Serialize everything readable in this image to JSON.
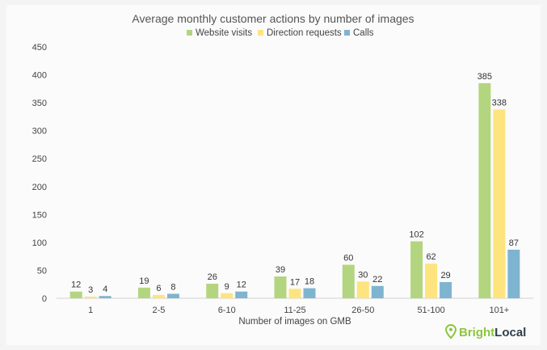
{
  "chart_data": {
    "type": "bar",
    "title": "Average monthly customer actions by number of images",
    "xlabel": "Number of images on GMB",
    "ylabel": "",
    "ylim": [
      0,
      450
    ],
    "yticks": [
      0,
      50,
      100,
      150,
      200,
      250,
      300,
      350,
      400,
      450
    ],
    "grid": false,
    "legend_position": "top-center",
    "categories": [
      "1",
      "2-5",
      "6-10",
      "11-25",
      "26-50",
      "51-100",
      "101+"
    ],
    "series": [
      {
        "name": "Website visits",
        "color": "#b3d57f",
        "values": [
          12,
          19,
          26,
          39,
          60,
          102,
          385
        ]
      },
      {
        "name": "Direction requests",
        "color": "#fde47f",
        "values": [
          3,
          6,
          9,
          17,
          30,
          62,
          338
        ]
      },
      {
        "name": "Calls",
        "color": "#7fb4d0",
        "values": [
          4,
          8,
          12,
          18,
          22,
          29,
          87
        ]
      }
    ]
  },
  "brand": {
    "name_part1": "Bright",
    "name_part2": "Local",
    "color_part1": "#8cc63f",
    "color_part2": "#2f3e4c",
    "icon": "map-pin-icon"
  }
}
